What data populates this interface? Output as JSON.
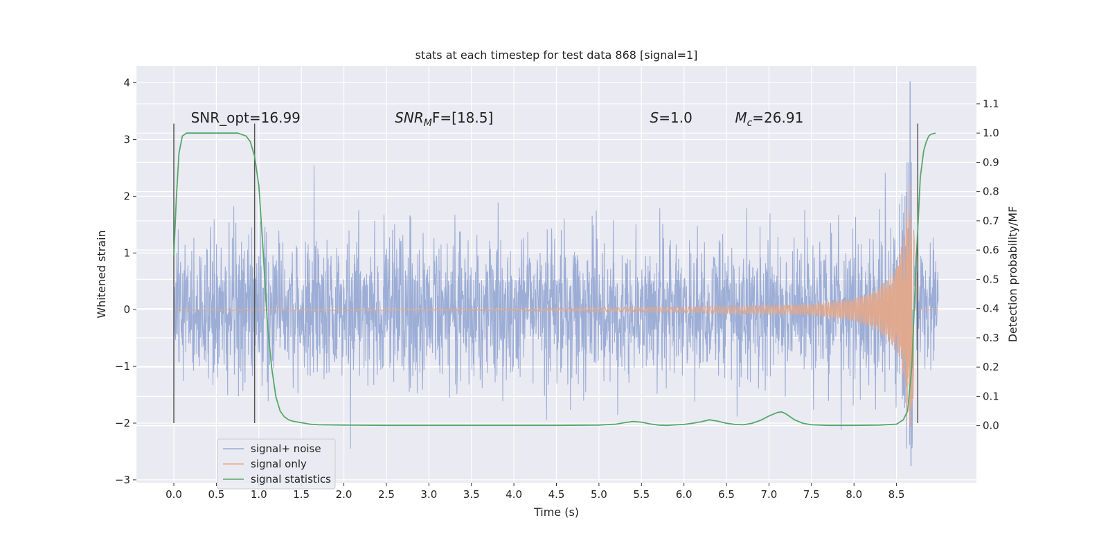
{
  "chart_data": {
    "type": "line",
    "title": "stats at each timestep for test data 868 [signal=1]",
    "xlabel": "Time (s)",
    "ylabel": "Whitened strain",
    "y2label": "Detection probability/MF",
    "xlim": [
      -0.44,
      9.44
    ],
    "ylim": [
      -3.05,
      4.3
    ],
    "y2lim": [
      -0.195,
      1.23
    ],
    "xticks": [
      0.0,
      0.5,
      1.0,
      1.5,
      2.0,
      2.5,
      3.0,
      3.5,
      4.0,
      4.5,
      5.0,
      5.5,
      6.0,
      6.5,
      7.0,
      7.5,
      8.0,
      8.5
    ],
    "xtick_labels": [
      "0.0",
      "0.5",
      "1.0",
      "1.5",
      "2.0",
      "2.5",
      "3.0",
      "3.5",
      "4.0",
      "4.5",
      "5.0",
      "5.5",
      "6.0",
      "6.5",
      "7.0",
      "7.5",
      "8.0",
      "8.5"
    ],
    "yticks": [
      -3,
      -2,
      -1,
      0,
      1,
      2,
      3,
      4
    ],
    "ytick_labels": [
      "−3",
      "−2",
      "−1",
      "0",
      "1",
      "2",
      "3",
      "4"
    ],
    "y2ticks": [
      0.0,
      0.1,
      0.2,
      0.3,
      0.4,
      0.5,
      0.6,
      0.7,
      0.8,
      0.9,
      1.0,
      1.1
    ],
    "y2tick_labels": [
      "0.0",
      "0.1",
      "0.2",
      "0.3",
      "0.4",
      "0.5",
      "0.6",
      "0.7",
      "0.8",
      "0.9",
      "1.0",
      "1.1"
    ],
    "grid": true,
    "legend_position": "lower-left",
    "colors": {
      "background": "#eaeaf2",
      "grid": "#ffffff",
      "noise": "#98aad4",
      "signal": "#e3a98c",
      "statistics": "#55a868",
      "markers": "#555555"
    },
    "series": [
      {
        "name": "signal+ noise",
        "axis": "left",
        "x_range": [
          0.0,
          8.99
        ],
        "typical_amplitude": 1.15,
        "max_peak": [
          8.66,
          4.02
        ],
        "min_peak": [
          8.66,
          -2.75
        ]
      },
      {
        "name": "signal only",
        "axis": "left",
        "x_range": [
          0.0,
          8.99
        ],
        "envelope": [
          [
            0.0,
            0.01
          ],
          [
            4.0,
            0.02
          ],
          [
            6.0,
            0.05
          ],
          [
            7.0,
            0.08
          ],
          [
            7.5,
            0.1
          ],
          [
            8.0,
            0.2
          ],
          [
            8.3,
            0.38
          ],
          [
            8.5,
            0.75
          ],
          [
            8.6,
            1.4
          ],
          [
            8.65,
            2.4
          ],
          [
            8.7,
            1.5
          ],
          [
            8.75,
            0.0
          ]
        ],
        "final_peak": [
          8.66,
          2.25
        ]
      },
      {
        "name": "signal statistics",
        "axis": "right",
        "x": [
          0.0,
          0.03,
          0.06,
          0.1,
          0.15,
          0.2,
          0.3,
          0.4,
          0.5,
          0.6,
          0.7,
          0.75,
          0.85,
          0.9,
          0.95,
          1.0,
          1.05,
          1.1,
          1.15,
          1.2,
          1.25,
          1.3,
          1.35,
          1.4,
          1.5,
          1.6,
          1.7,
          2.0,
          2.5,
          3.0,
          3.5,
          4.0,
          4.5,
          5.0,
          5.2,
          5.3,
          5.4,
          5.5,
          5.6,
          5.7,
          5.8,
          6.0,
          6.1,
          6.2,
          6.3,
          6.4,
          6.5,
          6.6,
          6.7,
          6.8,
          6.9,
          7.0,
          7.1,
          7.15,
          7.2,
          7.3,
          7.4,
          7.5,
          7.7,
          8.0,
          8.3,
          8.5,
          8.58,
          8.63,
          8.68,
          8.73,
          8.78,
          8.82,
          8.85,
          8.88,
          8.9,
          8.93,
          8.96
        ],
        "y": [
          0.58,
          0.78,
          0.93,
          0.99,
          1.0,
          1.0,
          1.0,
          1.0,
          1.0,
          1.0,
          1.0,
          1.0,
          0.99,
          0.97,
          0.92,
          0.82,
          0.6,
          0.35,
          0.2,
          0.1,
          0.05,
          0.03,
          0.02,
          0.015,
          0.01,
          0.005,
          0.003,
          0.002,
          0.001,
          0.001,
          0.001,
          0.001,
          0.001,
          0.002,
          0.005,
          0.01,
          0.014,
          0.012,
          0.006,
          0.002,
          0.001,
          0.004,
          0.008,
          0.013,
          0.02,
          0.015,
          0.008,
          0.004,
          0.003,
          0.008,
          0.018,
          0.033,
          0.045,
          0.047,
          0.04,
          0.02,
          0.008,
          0.003,
          0.001,
          0.001,
          0.002,
          0.005,
          0.02,
          0.05,
          0.2,
          0.55,
          0.85,
          0.94,
          0.97,
          0.99,
          0.995,
          0.998,
          1.0
        ]
      }
    ],
    "vertical_markers": [
      {
        "x": 0.0,
        "y_range": [
          -2.0,
          3.28
        ]
      },
      {
        "x": 0.95,
        "y_range": [
          -2.0,
          3.28
        ]
      },
      {
        "x": 8.75,
        "y_range": [
          -2.0,
          3.28
        ]
      }
    ],
    "annotations": [
      {
        "text": "SNR_opt=16.99",
        "x": 0.2,
        "y": 3.3
      },
      {
        "base": "SNR",
        "sub": "M",
        "rest": "F=[18.5]",
        "x": 2.6,
        "y": 3.3
      },
      {
        "base": "S",
        "rest": "=1.0",
        "x": 5.6,
        "y": 3.3
      },
      {
        "base": "M",
        "sub": "c",
        "rest": "=26.91",
        "x": 6.6,
        "y": 3.3
      }
    ]
  }
}
